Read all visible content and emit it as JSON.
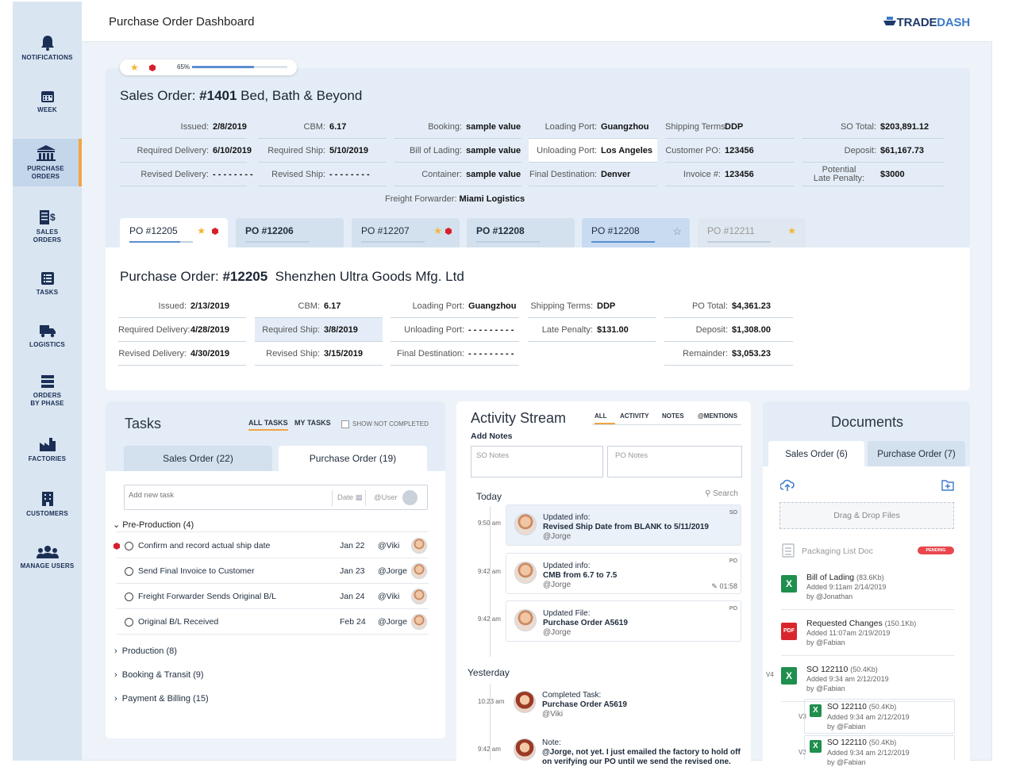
{
  "app": {
    "title": "Purchase Order Dashboard",
    "logo_a": "TRADE",
    "logo_b": "DASH"
  },
  "nav": [
    {
      "label": "NOTIFICATIONS",
      "icon": "bell-icon"
    },
    {
      "label": "WEEK",
      "icon": "calendar-icon"
    },
    {
      "label": "PURCHASE\nORDERS",
      "icon": "building-icon"
    },
    {
      "label": "SALES\nORDERS",
      "icon": "invoice-icon"
    },
    {
      "label": "TASKS",
      "icon": "list-icon"
    },
    {
      "label": "LOGISTICS",
      "icon": "truck-icon"
    },
    {
      "label": "ORDERS\nBY PHASE",
      "icon": "stack-icon"
    },
    {
      "label": "FACTORIES",
      "icon": "factory-icon"
    },
    {
      "label": "CUSTOMERS",
      "icon": "office-icon"
    },
    {
      "label": "MANAGE USERS",
      "icon": "users-icon"
    }
  ],
  "progress": {
    "label": "65%",
    "value": 0.65
  },
  "so": {
    "prefix": "Sales Order: ",
    "number": "#1401",
    "customer": "Bed, Bath & Beyond",
    "fields": [
      [
        "Issued:",
        "2/8/2019"
      ],
      [
        "CBM:",
        "6.17"
      ],
      [
        "Booking:",
        "sample value"
      ],
      [
        "Loading Port:",
        "Guangzhou"
      ],
      [
        "Shipping Terms:",
        "DDP"
      ],
      [
        "SO Total:",
        "$203,891.12"
      ],
      [
        "Required Delivery:",
        "6/10/2019"
      ],
      [
        "Required Ship:",
        "5/10/2019"
      ],
      [
        "Bill of Lading:",
        "sample value"
      ],
      [
        "Unloading Port:",
        "Los Angeles"
      ],
      [
        "Customer PO:",
        "123456"
      ],
      [
        "Deposit:",
        "$61,167.73"
      ],
      [
        "Revised Delivery:",
        "- - - - - - - -"
      ],
      [
        "Revised Ship:",
        "- - - - - - - -"
      ],
      [
        "Container:",
        "sample value"
      ],
      [
        "Final Destination:",
        "Denver"
      ],
      [
        "Invoice #:",
        "123456"
      ],
      [
        "Potential\nLate Penalty:",
        "$3000"
      ]
    ],
    "ff_label": "Freight Forwarder:",
    "ff_value": "Miami Logistics"
  },
  "po_tabs": [
    "PO #12205",
    "PO #12206",
    "PO #12207",
    "PO #12208",
    "PO #12208",
    "PO #12211"
  ],
  "po": {
    "prefix": "Purchase Order: ",
    "number": "#12205",
    "vendor": "Shenzhen Ultra Goods Mfg. Ltd",
    "fields": [
      [
        "Issued:",
        "2/13/2019"
      ],
      [
        "CBM:",
        "6.17"
      ],
      [
        "Loading Port:",
        "Guangzhou"
      ],
      [
        "Shipping Terms:",
        "DDP"
      ],
      [
        "PO Total:",
        "$4,361.23"
      ],
      [
        "Required Delivery:",
        "4/28/2019"
      ],
      [
        "Required Ship:",
        "3/8/2019"
      ],
      [
        "Unloading Port:",
        "- - - - - - - - -"
      ],
      [
        "Late Penalty:",
        "$131.00"
      ],
      [
        "Deposit:",
        "$1,308.00"
      ],
      [
        "Revised Delivery:",
        "4/30/2019"
      ],
      [
        "Revised Ship:",
        "3/15/2019"
      ],
      [
        "Final Destination:",
        "- - - - - - - - -"
      ],
      [
        "",
        ""
      ],
      [
        "Remainder:",
        "$3,053.23"
      ]
    ]
  },
  "tasks": {
    "title": "Tasks",
    "filter_all": "ALL TASKS",
    "filter_my": "MY TASKS",
    "show_not_completed": "SHOW NOT COMPLETED",
    "tab_so": "Sales Order (22)",
    "tab_po": "Purchase Order (19)",
    "add_placeholder": "Add new task",
    "date_ph": "Date",
    "user_ph": "@User",
    "group_open": "Pre-Production (4)",
    "items": [
      [
        "Confirm and record actual ship date",
        "Jan 22",
        "@Viki"
      ],
      [
        "Send Final Invoice to Customer",
        "Jan 23",
        "@Jorge"
      ],
      [
        "Freight Forwarder Sends Original B/L",
        "Jan 24",
        "@Viki"
      ],
      [
        "Original B/L Received",
        "Feb 24",
        "@Jorge"
      ]
    ],
    "groups": [
      "Production (8)",
      "Booking & Transit (9)",
      "Payment & Billing (15)"
    ]
  },
  "activity": {
    "title": "Activity Stream",
    "tabs": [
      "ALL",
      "ACTIVITY",
      "NOTES",
      "@MENTIONS"
    ],
    "add_notes": "Add Notes",
    "so_notes": "SO Notes",
    "po_notes": "PO Notes",
    "today": "Today",
    "search": "Search",
    "yesterday": "Yesterday",
    "cards": [
      {
        "time": "9:50 am",
        "tag": "SO",
        "l1": "Updated info:",
        "l2": "Revised Ship Date from BLANK to 5/11/2019",
        "l3": "@Jorge"
      },
      {
        "time": "9:42 am",
        "tag": "PO",
        "l1": "Updated info:",
        "l2": "CMB from 6.7 to 7.5",
        "l3": "@Jorge",
        "edit": "01:58"
      },
      {
        "time": "9:42 am",
        "tag": "PO",
        "l1": "Updated File:",
        "l2": "Purchase Order A5619",
        "l3": "@Jorge"
      },
      {
        "time": "10:23 am",
        "tag": "",
        "l1": "Completed Task:",
        "l2": "Purchase Order A5619",
        "l3": "@Viki"
      },
      {
        "time": "9:42 am",
        "tag": "",
        "l1": "Note:",
        "l2": "@Jorge, not yet. I just emailed the factory to hold off",
        "l3": "on verifying our PO until we send the revised one."
      }
    ]
  },
  "documents": {
    "title": "Documents",
    "tab_so": "Sales Order (6)",
    "tab_po": "Purchase Order (7)",
    "drop": "Drag & Drop Files",
    "packing": "Packaging List Doc",
    "pending": "PENDING",
    "files": [
      {
        "name": "Bill of Lading",
        "size": "(83.6Kb)",
        "added": "Added  9:11am  2/14/2019",
        "by": "by @Jonathan"
      },
      {
        "name": "Requested Changes",
        "size": "(150.1Kb)",
        "added": "Added  11:07am  2/19/2019",
        "by": "by @Fabian"
      },
      {
        "name": "SO 122110",
        "size": "(50.4Kb)",
        "added": "Added  9:34 am  2/12/2019",
        "by": "by @Fabian",
        "ver": "V4"
      },
      {
        "name": "SO 122110",
        "size": "(50.4Kb)",
        "added": "Added  9:34 am  2/12/2019",
        "by": "by @Fabian",
        "ver": "V3"
      },
      {
        "name": "SO 122110",
        "size": "(50.4Kb)",
        "added": "Added  9:34 am  2/12/2019",
        "by": "by @Fabian",
        "ver": "V2"
      }
    ]
  }
}
